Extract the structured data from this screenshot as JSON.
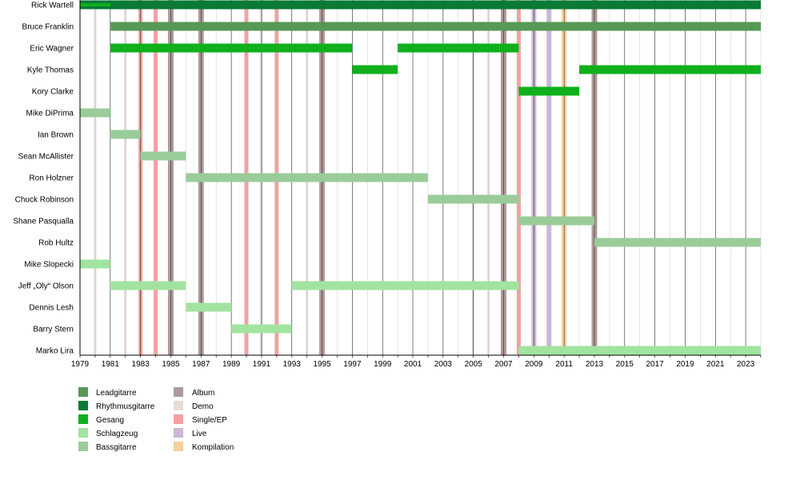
{
  "chart_data": {
    "type": "timeline",
    "title": "",
    "xlabel": "",
    "ylabel": "",
    "xlim": [
      1979,
      2024
    ],
    "x_ticks": [
      1979,
      1981,
      1983,
      1985,
      1987,
      1989,
      1991,
      1993,
      1995,
      1997,
      1999,
      2001,
      2003,
      2005,
      2007,
      2009,
      2011,
      2013,
      2015,
      2017,
      2019,
      2021,
      2023
    ],
    "grid": "vertical lines every year",
    "members": [
      "Rick Wartell",
      "Bruce Franklin",
      "Eric Wagner",
      "Kyle Thomas",
      "Kory Clarke",
      "Mike DiPrima",
      "Ian Brown",
      "Sean McAllister",
      "Ron Holzner",
      "Chuck Robinson",
      "Shane Pasqualla",
      "Rob Hultz",
      "Mike Slopecki",
      "Jeff „Oly“ Olson",
      "Dennis Lesh",
      "Barry Stern",
      "Marko Lira"
    ],
    "roles": [
      {
        "name": "Leadgitarre",
        "color": "#559955"
      },
      {
        "name": "Rhythmusgitarre",
        "color": "#0a7a35"
      },
      {
        "name": "Gesang",
        "color": "#0fb01b"
      },
      {
        "name": "Schlagzeug",
        "color": "#a2e3a0"
      },
      {
        "name": "Bassgitarre",
        "color": "#99cc99"
      }
    ],
    "release_types": [
      {
        "name": "Album",
        "color": "#b09a9a"
      },
      {
        "name": "Demo",
        "color": "#e8dbd9"
      },
      {
        "name": "Single/EP",
        "color": "#f4a0a0"
      },
      {
        "name": "Live",
        "color": "#cdb6d6"
      },
      {
        "name": "Kompilation",
        "color": "#f8cf9a"
      }
    ],
    "bars": [
      {
        "member": "Rick Wartell",
        "role": "Rhythmusgitarre",
        "start": 1979,
        "end": 2024
      },
      {
        "member": "Rick Wartell",
        "role": "Gesang",
        "start": 1979,
        "end": 1981
      },
      {
        "member": "Bruce Franklin",
        "role": "Leadgitarre",
        "start": 1981,
        "end": 2024
      },
      {
        "member": "Eric Wagner",
        "role": "Gesang",
        "start": 1981,
        "end": 1997
      },
      {
        "member": "Eric Wagner",
        "role": "Gesang",
        "start": 2000,
        "end": 2008
      },
      {
        "member": "Kyle Thomas",
        "role": "Gesang",
        "start": 1997,
        "end": 2000
      },
      {
        "member": "Kyle Thomas",
        "role": "Gesang",
        "start": 2012,
        "end": 2024
      },
      {
        "member": "Kory Clarke",
        "role": "Gesang",
        "start": 2008,
        "end": 2012
      },
      {
        "member": "Mike DiPrima",
        "role": "Bassgitarre",
        "start": 1979,
        "end": 1981
      },
      {
        "member": "Ian Brown",
        "role": "Bassgitarre",
        "start": 1981,
        "end": 1983
      },
      {
        "member": "Sean McAllister",
        "role": "Bassgitarre",
        "start": 1983,
        "end": 1986
      },
      {
        "member": "Ron Holzner",
        "role": "Bassgitarre",
        "start": 1986,
        "end": 2002
      },
      {
        "member": "Chuck Robinson",
        "role": "Bassgitarre",
        "start": 2002,
        "end": 2008
      },
      {
        "member": "Shane Pasqualla",
        "role": "Bassgitarre",
        "start": 2008,
        "end": 2013
      },
      {
        "member": "Rob Hultz",
        "role": "Bassgitarre",
        "start": 2013,
        "end": 2024
      },
      {
        "member": "Mike Slopecki",
        "role": "Schlagzeug",
        "start": 1979,
        "end": 1981
      },
      {
        "member": "Jeff „Oly“ Olson",
        "role": "Schlagzeug",
        "start": 1981,
        "end": 1986
      },
      {
        "member": "Jeff „Oly“ Olson",
        "role": "Schlagzeug",
        "start": 1993,
        "end": 2008
      },
      {
        "member": "Dennis Lesh",
        "role": "Schlagzeug",
        "start": 1986,
        "end": 1989
      },
      {
        "member": "Barry Stern",
        "role": "Schlagzeug",
        "start": 1989,
        "end": 1993
      },
      {
        "member": "Marko Lira",
        "role": "Schlagzeug",
        "start": 2008,
        "end": 2024
      }
    ],
    "releases": [
      {
        "year": 1980,
        "type": "Demo"
      },
      {
        "year": 1982,
        "type": "Demo"
      },
      {
        "year": 1983,
        "type": "Single/EP"
      },
      {
        "year": 1984,
        "type": "Single/EP"
      },
      {
        "year": 1985,
        "type": "Album"
      },
      {
        "year": 1987,
        "type": "Album"
      },
      {
        "year": 1990,
        "type": "Single/EP"
      },
      {
        "year": 1991,
        "type": "Demo"
      },
      {
        "year": 1992,
        "type": "Single/EP"
      },
      {
        "year": 1994,
        "type": "Demo"
      },
      {
        "year": 1995,
        "type": "Album"
      },
      {
        "year": 2005,
        "type": "Demo"
      },
      {
        "year": 2006,
        "type": "Demo"
      },
      {
        "year": 2007,
        "type": "Album"
      },
      {
        "year": 2008,
        "type": "Single/EP"
      },
      {
        "year": 2009,
        "type": "Live"
      },
      {
        "year": 2010,
        "type": "Live"
      },
      {
        "year": 2011,
        "type": "Kompilation"
      },
      {
        "year": 2013,
        "type": "Album"
      }
    ]
  }
}
